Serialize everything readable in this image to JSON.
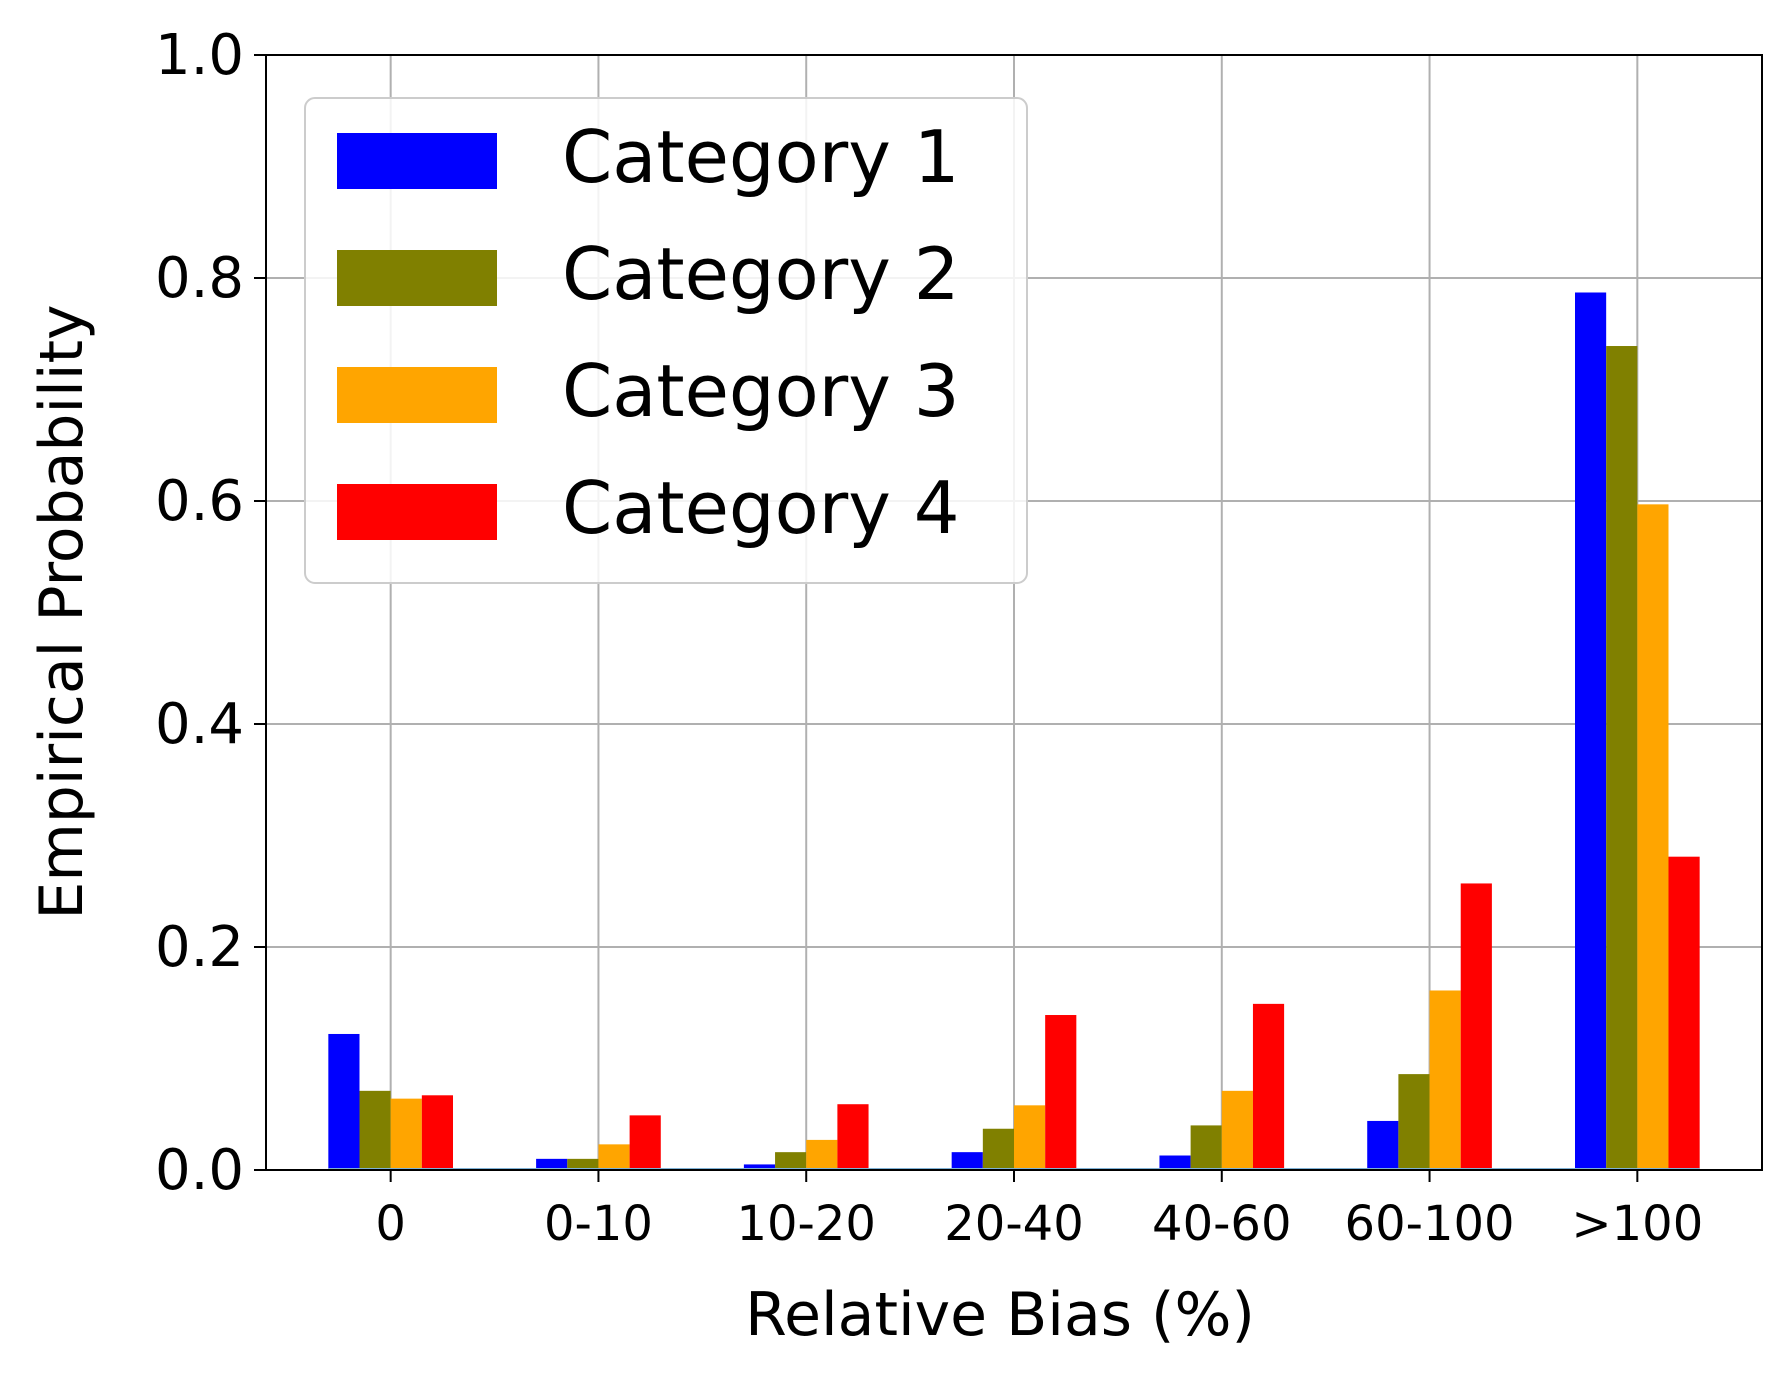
{
  "chart_data": {
    "type": "bar",
    "title": "",
    "xlabel": "Relative Bias (%)",
    "ylabel": "Empirical Probability",
    "categories": [
      "0",
      "0-10",
      "10-20",
      "20-40",
      "40-60",
      "60-100",
      ">100"
    ],
    "ylim": [
      0,
      1.0
    ],
    "yticks": [
      "0.0",
      "0.2",
      "0.4",
      "0.6",
      "0.8",
      "1.0"
    ],
    "grid": true,
    "legend_position": "top-left",
    "series": [
      {
        "name": "Category 1",
        "color": "#0000ff",
        "values": [
          0.122,
          0.01,
          0.005,
          0.016,
          0.013,
          0.044,
          0.787
        ]
      },
      {
        "name": "Category 2",
        "color": "#808000",
        "values": [
          0.071,
          0.01,
          0.016,
          0.037,
          0.04,
          0.086,
          0.739
        ]
      },
      {
        "name": "Category 3",
        "color": "#ffa500",
        "values": [
          0.064,
          0.023,
          0.027,
          0.058,
          0.071,
          0.161,
          0.597
        ]
      },
      {
        "name": "Category 4",
        "color": "#ff0000",
        "values": [
          0.067,
          0.049,
          0.059,
          0.139,
          0.149,
          0.257,
          0.281
        ]
      }
    ]
  }
}
